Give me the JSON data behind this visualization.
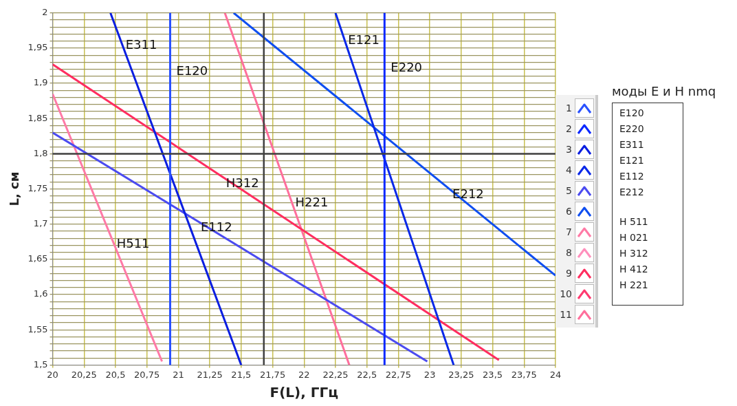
{
  "chart_data": {
    "type": "line",
    "xlabel": "F(L), ГГц",
    "ylabel": "L, см",
    "legend_title": "моды E и H nmq",
    "legend": "right",
    "grid": true,
    "marker": "none",
    "line_style": "solid",
    "xlim": [
      20,
      24
    ],
    "ylim": [
      1.5,
      2
    ],
    "xticks": [
      20,
      {
        "value": 20.25,
        "label": "20,25"
      },
      {
        "value": 20.5,
        "label": "20,5"
      },
      {
        "value": 20.75,
        "label": "20,75"
      },
      21,
      {
        "value": 21.25,
        "label": "21,25"
      },
      {
        "value": 21.5,
        "label": "21,5"
      },
      {
        "value": 21.75,
        "label": "21,75"
      },
      22,
      {
        "value": 22.25,
        "label": "22,25"
      },
      {
        "value": 22.5,
        "label": "22,5"
      },
      {
        "value": 22.75,
        "label": "22,75"
      },
      23,
      {
        "value": 23.25,
        "label": "23,25"
      },
      {
        "value": 23.5,
        "label": "23,5"
      },
      {
        "value": 23.75,
        "label": "23,75"
      },
      24
    ],
    "yticks": [
      {
        "value": 1.5,
        "label": "1,5"
      },
      {
        "value": 1.51,
        "label": null
      },
      {
        "value": 1.52,
        "label": null
      },
      {
        "value": 1.53,
        "label": null
      },
      {
        "value": 1.54,
        "label": null
      },
      {
        "value": 1.55,
        "label": "1,55"
      },
      {
        "value": 1.56,
        "label": null
      },
      {
        "value": 1.57,
        "label": null
      },
      {
        "value": 1.58,
        "label": null
      },
      {
        "value": 1.59,
        "label": null
      },
      {
        "value": 1.6,
        "label": "1,6"
      },
      {
        "value": 1.61,
        "label": null
      },
      {
        "value": 1.62,
        "label": null
      },
      {
        "value": 1.63,
        "label": null
      },
      {
        "value": 1.64,
        "label": null
      },
      {
        "value": 1.65,
        "label": "1,65"
      },
      {
        "value": 1.66,
        "label": null
      },
      {
        "value": 1.67,
        "label": null
      },
      {
        "value": 1.68,
        "label": null
      },
      {
        "value": 1.69,
        "label": null
      },
      {
        "value": 1.7,
        "label": "1,7"
      },
      {
        "value": 1.71,
        "label": null
      },
      {
        "value": 1.72,
        "label": null
      },
      {
        "value": 1.73,
        "label": null
      },
      {
        "value": 1.74,
        "label": null
      },
      {
        "value": 1.75,
        "label": "1,75"
      },
      {
        "value": 1.76,
        "label": null
      },
      {
        "value": 1.77,
        "label": null
      },
      {
        "value": 1.78,
        "label": null
      },
      {
        "value": 1.79,
        "label": null
      },
      {
        "value": 1.8,
        "label": "1,8"
      },
      {
        "value": 1.81,
        "label": null
      },
      {
        "value": 1.82,
        "label": null
      },
      {
        "value": 1.83,
        "label": null
      },
      {
        "value": 1.84,
        "label": null
      },
      {
        "value": 1.85,
        "label": "1,85"
      },
      {
        "value": 1.86,
        "label": null
      },
      {
        "value": 1.87,
        "label": null
      },
      {
        "value": 1.88,
        "label": null
      },
      {
        "value": 1.89,
        "label": null
      },
      {
        "value": 1.9,
        "label": "1,9"
      },
      {
        "value": 1.91,
        "label": null
      },
      {
        "value": 1.92,
        "label": null
      },
      {
        "value": 1.93,
        "label": null
      },
      {
        "value": 1.94,
        "label": null
      },
      {
        "value": 1.95,
        "label": "1,95"
      },
      {
        "value": 1.96,
        "label": null
      },
      {
        "value": 1.97,
        "label": null
      },
      {
        "value": 1.98,
        "label": null
      },
      {
        "value": 1.99,
        "label": null
      },
      {
        "value": 2,
        "label": "2"
      }
    ],
    "series": [
      {
        "name": "1",
        "color": "#2a52ff",
        "x": [
          20.935,
          20.935
        ],
        "values": [
          2,
          1.5
        ]
      },
      {
        "name": "2",
        "color": "#0a28ff",
        "x": [
          22.64,
          22.64
        ],
        "values": [
          2,
          1.5
        ]
      },
      {
        "name": "3",
        "color": "#0a1ee0",
        "x": [
          20.46,
          21.5
        ],
        "values": [
          2,
          1.5
        ]
      },
      {
        "name": "4",
        "color": "#0a28e8",
        "x": [
          22.25,
          23.19
        ],
        "values": [
          2,
          1.5
        ]
      },
      {
        "name": "5",
        "color": "#4b4bf0",
        "x": [
          20,
          22.98
        ],
        "values": [
          1.83,
          1.505
        ]
      },
      {
        "name": "6",
        "color": "#0f4ef0",
        "x": [
          21.44,
          24
        ],
        "values": [
          2,
          1.627
        ]
      },
      {
        "name": "7",
        "color": "#ff7aa6",
        "x": [
          20,
          20.87
        ],
        "values": [
          1.885,
          1.505
        ]
      },
      {
        "name": "8",
        "color": "#ff8fbc"
      },
      {
        "name": "9",
        "color": "#ff2d5f",
        "x": [
          20,
          23.55
        ],
        "values": [
          1.927,
          1.507
        ]
      },
      {
        "name": "10",
        "color": "#ff3a70"
      },
      {
        "name": "11",
        "color": "#ff6f9c",
        "x": [
          21.37,
          22.36
        ],
        "values": [
          2,
          1.5
        ]
      }
    ],
    "ref_lines": [
      {
        "axis": "x",
        "value": 21.68,
        "color": "#404040"
      },
      {
        "axis": "y",
        "value": 1.8,
        "color": "#404040"
      }
    ],
    "annotations": [
      {
        "text": "E311",
        "x": 20.531,
        "y": 1.966
      },
      {
        "text": "E120",
        "x": 20.935,
        "y": 1.929
      },
      {
        "text": "E121",
        "x": 22.3,
        "y": 1.973
      },
      {
        "text": "E220",
        "x": 22.64,
        "y": 1.934
      },
      {
        "text": "H312",
        "x": 21.33,
        "y": 1.77
      },
      {
        "text": "H221",
        "x": 21.881,
        "y": 1.742
      },
      {
        "text": "E212",
        "x": 23.131,
        "y": 1.754
      },
      {
        "text": "E112",
        "x": 21.129,
        "y": 1.707
      },
      {
        "text": "H511",
        "x": 20.46,
        "y": 1.684
      },
      "E120",
      "E220",
      "E311",
      "E121",
      "E112",
      "E212",
      "H 511",
      "H 021",
      "H 312",
      "H 412",
      "H 221"
    ]
  }
}
